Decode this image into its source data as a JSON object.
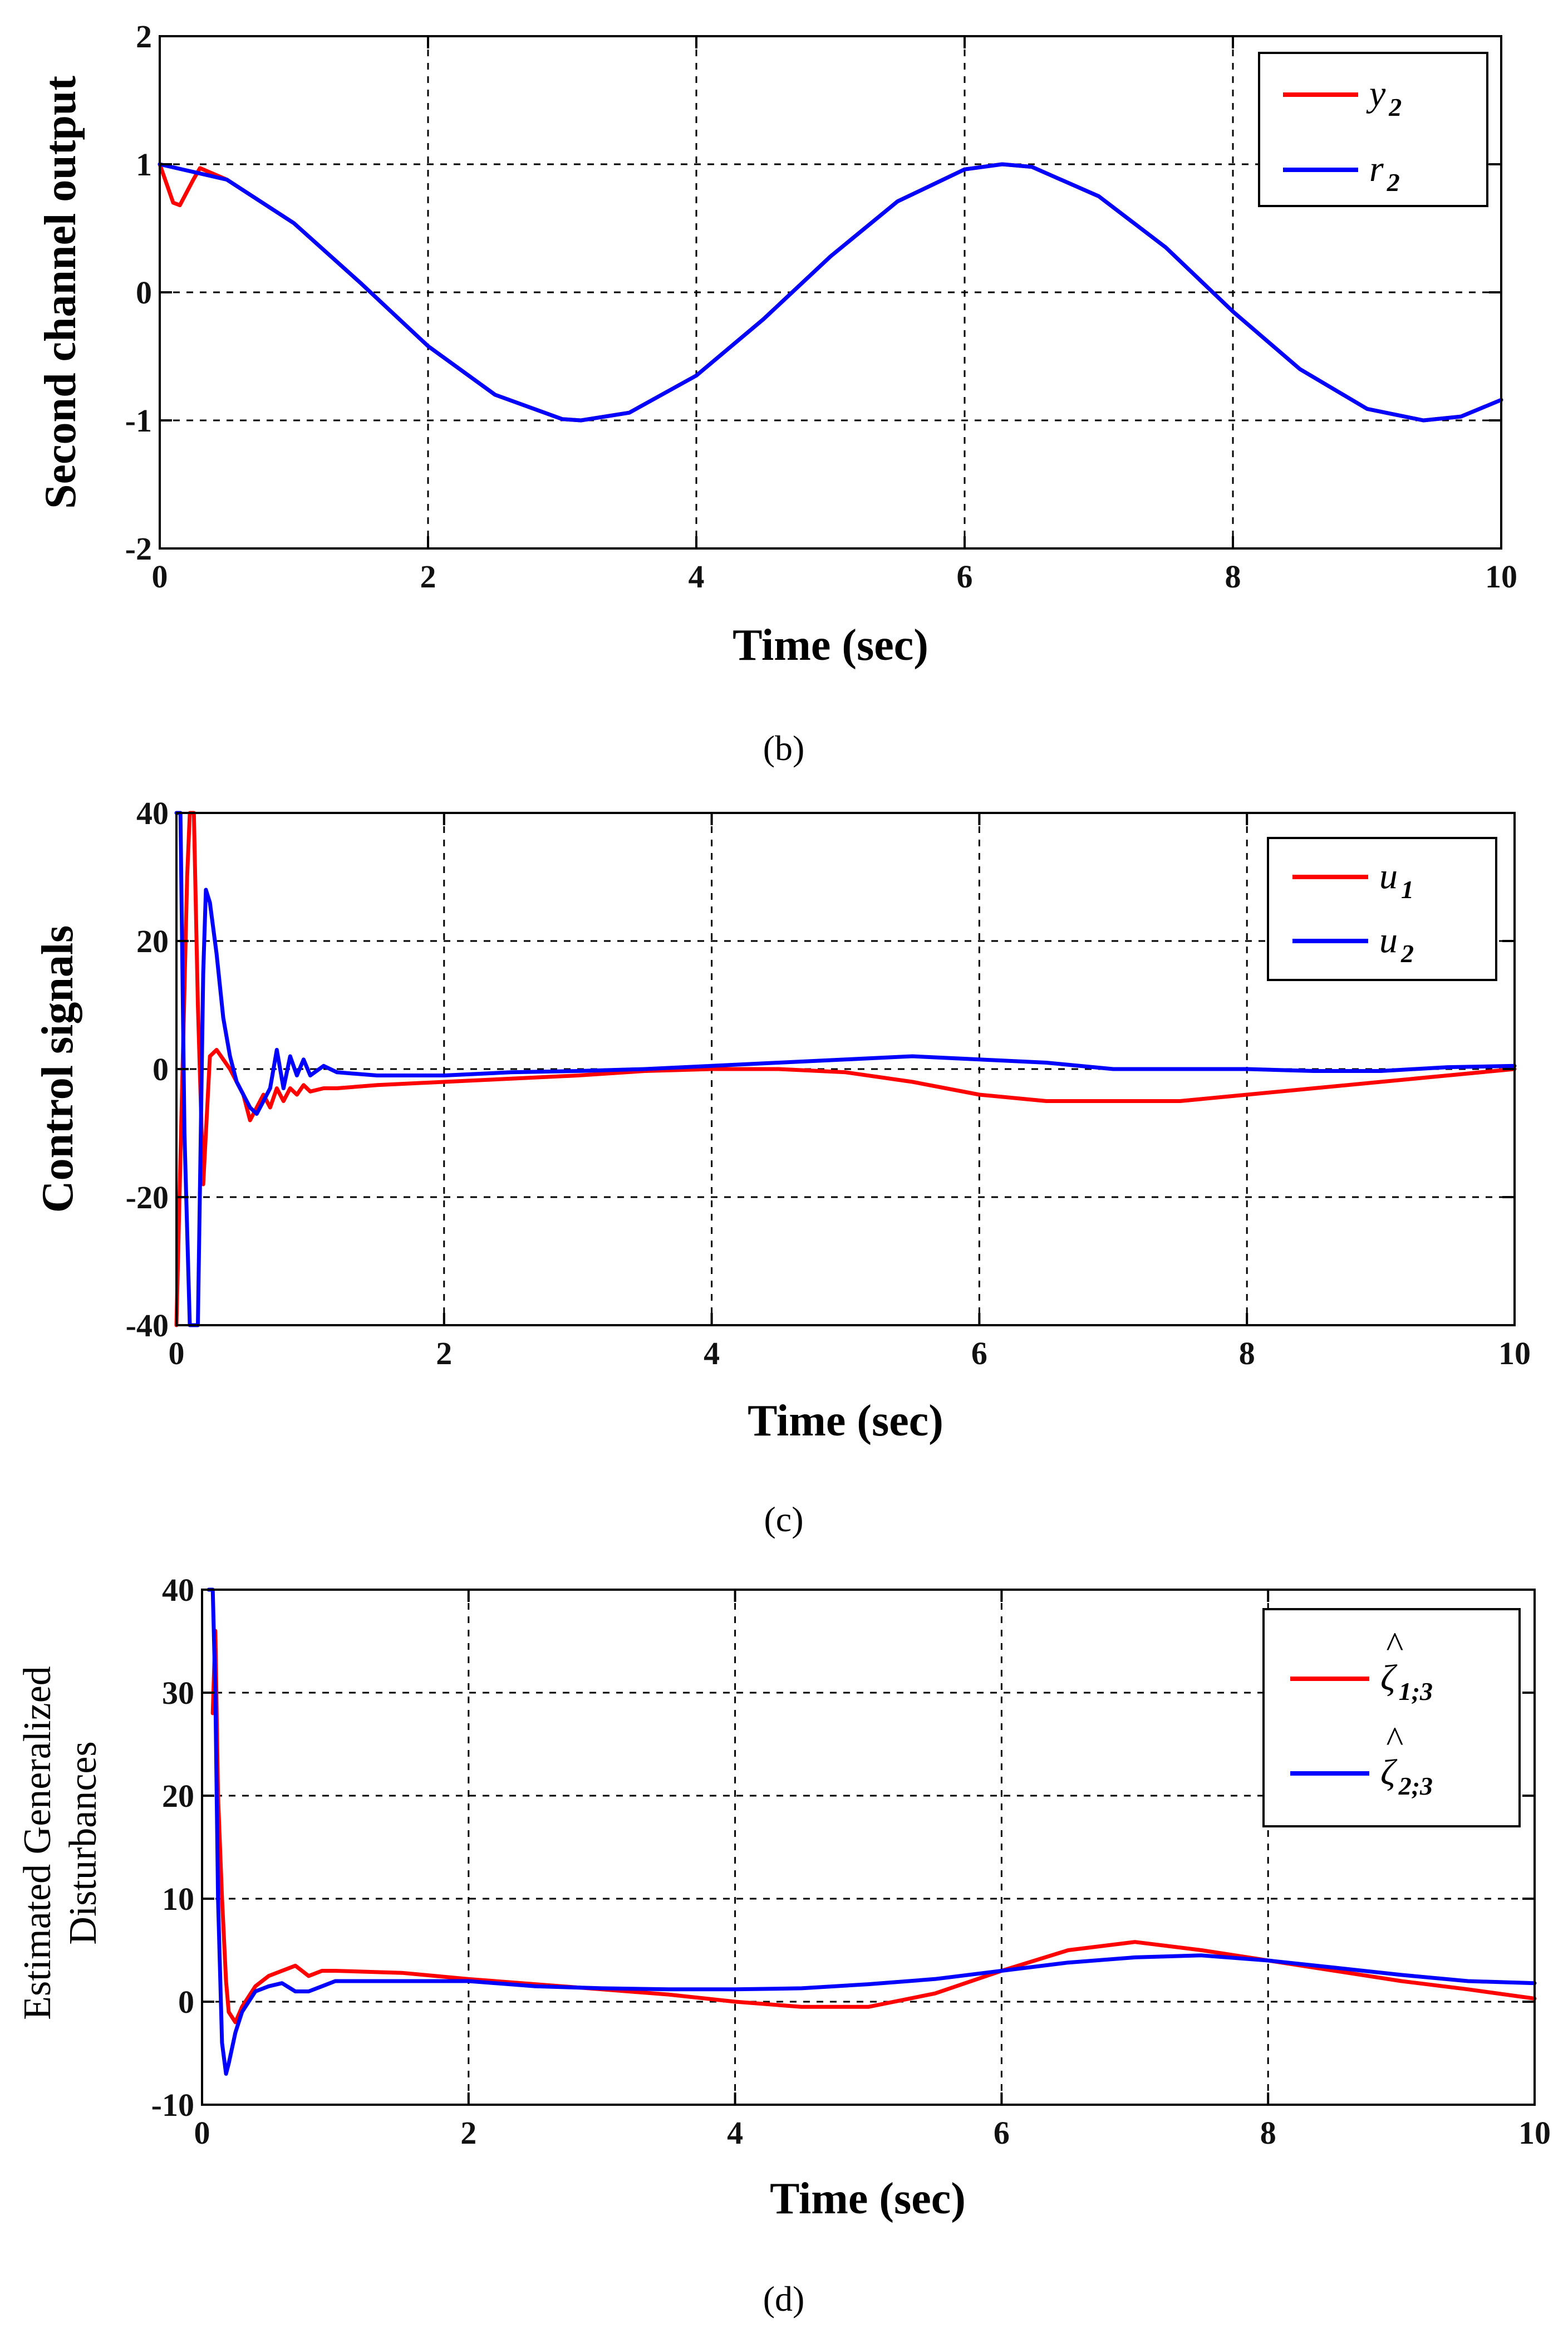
{
  "colors": {
    "red": "#ff0000",
    "blue": "#0000ff"
  },
  "chart_data": [
    {
      "id": "b",
      "type": "line",
      "caption": "(b)",
      "xlabel": "Time (sec)",
      "ylabel": "Second channel output",
      "xlim": [
        0,
        10
      ],
      "ylim": [
        -2,
        2
      ],
      "xticks": [
        0,
        2,
        4,
        6,
        8,
        10
      ],
      "yticks": [
        -2,
        -1,
        0,
        1,
        2
      ],
      "legend_position": "top-right",
      "series": [
        {
          "name": "y",
          "subscript": "2",
          "color": "#ff0000",
          "x": [
            0,
            0.05,
            0.1,
            0.15,
            0.2,
            0.25,
            0.3,
            0.5,
            1,
            1.5,
            2,
            2.5,
            3,
            3.14,
            3.5,
            4,
            4.5,
            5,
            5.5,
            6,
            6.28,
            6.5,
            7,
            7.5,
            8,
            8.5,
            9,
            9.42,
            9.7,
            10
          ],
          "y": [
            1.0,
            0.85,
            0.7,
            0.68,
            0.78,
            0.88,
            0.97,
            0.88,
            0.54,
            0.07,
            -0.42,
            -0.8,
            -0.99,
            -1.0,
            -0.94,
            -0.65,
            -0.21,
            0.28,
            0.71,
            0.96,
            1.0,
            0.98,
            0.75,
            0.35,
            -0.15,
            -0.6,
            -0.91,
            -1.0,
            -0.97,
            -0.84
          ]
        },
        {
          "name": "r",
          "subscript": "2",
          "color": "#0000ff",
          "x": [
            0,
            0.5,
            1,
            1.5,
            2,
            2.5,
            3,
            3.14,
            3.5,
            4,
            4.5,
            5,
            5.5,
            6,
            6.28,
            6.5,
            7,
            7.5,
            8,
            8.5,
            9,
            9.42,
            9.7,
            10
          ],
          "y": [
            1.0,
            0.88,
            0.54,
            0.07,
            -0.42,
            -0.8,
            -0.99,
            -1.0,
            -0.94,
            -0.65,
            -0.21,
            0.28,
            0.71,
            0.96,
            1.0,
            0.98,
            0.75,
            0.35,
            -0.15,
            -0.6,
            -0.91,
            -1.0,
            -0.97,
            -0.84
          ]
        }
      ]
    },
    {
      "id": "c",
      "type": "line",
      "caption": "(c)",
      "xlabel": "Time (sec)",
      "ylabel": "Control signals",
      "xlim": [
        0,
        10
      ],
      "ylim": [
        -40,
        40
      ],
      "xticks": [
        0,
        2,
        4,
        6,
        8,
        10
      ],
      "yticks": [
        -40,
        -20,
        0,
        20,
        40
      ],
      "legend_position": "top-right",
      "series": [
        {
          "name": "u",
          "subscript": "1",
          "color": "#ff0000",
          "x": [
            0,
            0.04,
            0.08,
            0.1,
            0.13,
            0.16,
            0.2,
            0.22,
            0.25,
            0.3,
            0.4,
            0.5,
            0.55,
            0.6,
            0.65,
            0.7,
            0.75,
            0.8,
            0.85,
            0.9,
            0.95,
            1.0,
            1.1,
            1.2,
            1.5,
            2,
            2.5,
            3,
            3.5,
            4,
            4.5,
            5,
            5.5,
            6,
            6.5,
            7,
            7.5,
            8,
            8.5,
            9,
            9.5,
            10
          ],
          "y": [
            -40,
            -5,
            30,
            40,
            40,
            10,
            -18,
            -10,
            2,
            3,
            0,
            -4,
            -8,
            -6,
            -4,
            -6,
            -3,
            -5,
            -3,
            -4,
            -2.5,
            -3.5,
            -3,
            -3,
            -2.5,
            -2,
            -1.5,
            -1,
            -0.3,
            0,
            0,
            -0.5,
            -2,
            -4,
            -5,
            -5,
            -5,
            -4,
            -3,
            -2,
            -1,
            0
          ]
        },
        {
          "name": "u",
          "subscript": "2",
          "color": "#0000ff",
          "x": [
            0,
            0.03,
            0.06,
            0.1,
            0.13,
            0.16,
            0.2,
            0.22,
            0.25,
            0.3,
            0.35,
            0.4,
            0.45,
            0.5,
            0.55,
            0.6,
            0.65,
            0.7,
            0.75,
            0.8,
            0.85,
            0.9,
            0.95,
            1.0,
            1.1,
            1.2,
            1.5,
            2,
            2.5,
            3,
            3.5,
            4,
            4.5,
            5,
            5.5,
            6,
            6.5,
            7,
            7.5,
            8,
            8.5,
            9,
            9.5,
            10
          ],
          "y": [
            40,
            40,
            -10,
            -40,
            -40,
            -40,
            15,
            28,
            26,
            18,
            8,
            2,
            -2,
            -4,
            -6,
            -7,
            -5,
            -3,
            3,
            -3,
            2,
            -1,
            1.5,
            -1,
            0.5,
            -0.5,
            -1,
            -1,
            -0.5,
            -0.3,
            0,
            0.5,
            1,
            1.5,
            2,
            1.5,
            1,
            0,
            0,
            0,
            -0.3,
            -0.3,
            0.3,
            0.5
          ]
        }
      ]
    },
    {
      "id": "d",
      "type": "line",
      "caption": "(d)",
      "xlabel": "Time (sec)",
      "ylabel": "Estimated Generalized Disturbances",
      "ylabel_lines": [
        "Estimated Generalized",
        "Disturbances"
      ],
      "xlim": [
        0,
        10
      ],
      "ylim": [
        -10,
        40
      ],
      "xticks": [
        0,
        2,
        4,
        6,
        8,
        10
      ],
      "yticks": [
        -10,
        0,
        10,
        20,
        30,
        40
      ],
      "legend_position": "top-right",
      "series": [
        {
          "name": "ζ",
          "subscript": "1;3",
          "color": "#ff0000",
          "x": [
            0.08,
            0.1,
            0.12,
            0.15,
            0.18,
            0.2,
            0.25,
            0.3,
            0.4,
            0.5,
            0.6,
            0.7,
            0.75,
            0.8,
            0.9,
            1.0,
            1.5,
            2,
            2.5,
            3,
            3.5,
            4,
            4.5,
            5,
            5.5,
            6,
            6.5,
            7,
            7.5,
            8,
            8.5,
            9,
            9.5,
            10
          ],
          "y": [
            28,
            36,
            20,
            10,
            2,
            -1,
            -2,
            -0.5,
            1.5,
            2.5,
            3,
            3.5,
            3,
            2.5,
            3,
            3,
            2.8,
            2.2,
            1.7,
            1.2,
            0.7,
            0,
            -0.5,
            -0.5,
            0.8,
            3,
            5,
            5.8,
            5,
            4,
            3,
            2,
            1.2,
            0.3
          ]
        },
        {
          "name": "ζ",
          "subscript": "2;3",
          "color": "#0000ff",
          "x": [
            0.05,
            0.08,
            0.1,
            0.12,
            0.15,
            0.18,
            0.2,
            0.25,
            0.3,
            0.4,
            0.5,
            0.6,
            0.7,
            0.8,
            0.9,
            1.0,
            1.5,
            2,
            2.5,
            3,
            3.5,
            4,
            4.5,
            5,
            5.5,
            6,
            6.5,
            7,
            7.5,
            8,
            8.5,
            9,
            9.5,
            10
          ],
          "y": [
            40,
            40,
            30,
            10,
            -4,
            -7,
            -6,
            -3,
            -1,
            1,
            1.5,
            1.8,
            1,
            1,
            1.5,
            2,
            2,
            2,
            1.5,
            1.3,
            1.2,
            1.2,
            1.3,
            1.7,
            2.2,
            3,
            3.8,
            4.3,
            4.5,
            4,
            3.3,
            2.6,
            2,
            1.8
          ]
        }
      ]
    }
  ]
}
